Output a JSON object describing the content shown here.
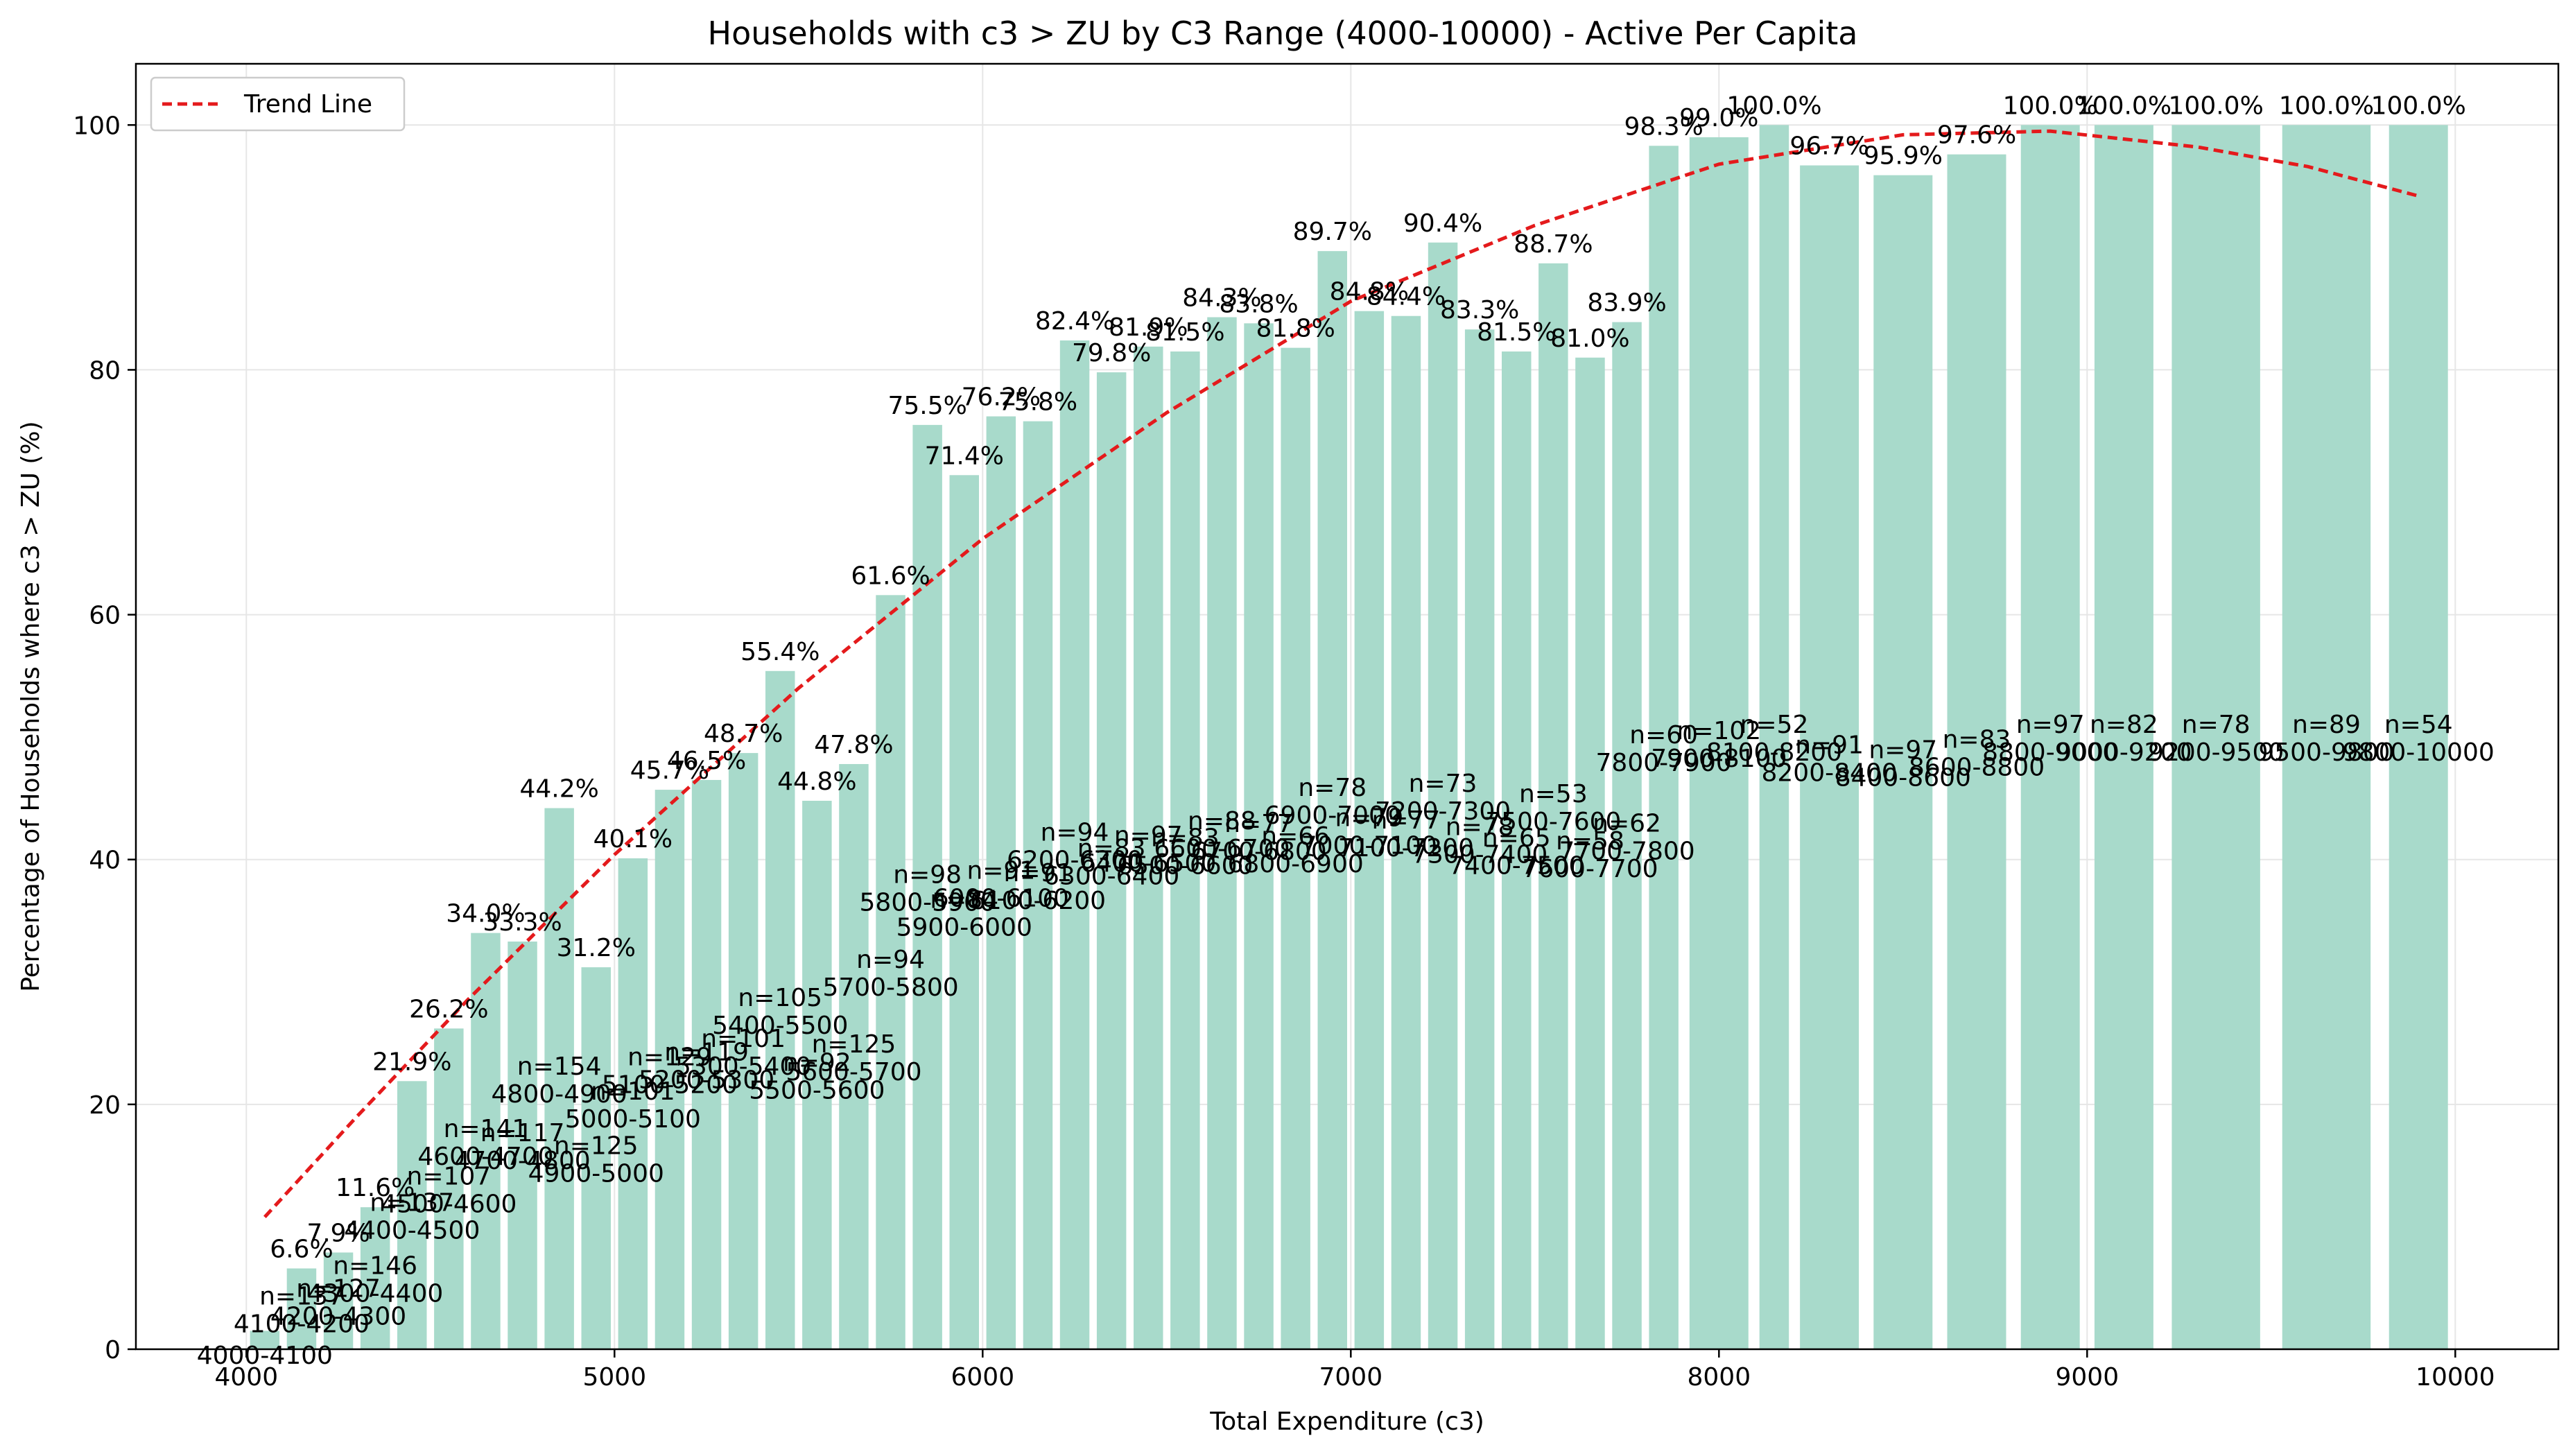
{
  "chart_data": {
    "type": "bar",
    "title": "Households with c3 > ZU by C3 Range (4000-10000) - Active Per Capita",
    "xlabel": "Total Expenditure (c3)",
    "ylabel": "Percentage of Households where c3 > ZU (%)",
    "xlim": [
      3700,
      10280
    ],
    "ylim": [
      0,
      105
    ],
    "xticks": [
      4000,
      5000,
      6000,
      7000,
      8000,
      9000,
      10000
    ],
    "yticks": [
      0,
      20,
      40,
      60,
      80,
      100
    ],
    "grid": true,
    "legend": {
      "position": "top-left",
      "entries": [
        "Trend Line"
      ]
    },
    "colors": {
      "bar": "#a8dacb",
      "trend": "#e41a1c",
      "grid": "#e6e6e6"
    },
    "bars": [
      {
        "x0": 4000,
        "x1": 4100,
        "value": 1.5,
        "pct_label": "",
        "n_label": "",
        "range_label": "4000-4100"
      },
      {
        "x0": 4100,
        "x1": 4200,
        "value": 6.6,
        "pct_label": "6.6%",
        "n_label": "n=137",
        "range_label": "4100-4200"
      },
      {
        "x0": 4200,
        "x1": 4300,
        "value": 7.9,
        "pct_label": "7.9%",
        "n_label": "n=127",
        "range_label": "4200-4300"
      },
      {
        "x0": 4300,
        "x1": 4400,
        "value": 11.6,
        "pct_label": "11.6%",
        "n_label": "n=146",
        "range_label": "4300-4400"
      },
      {
        "x0": 4400,
        "x1": 4500,
        "value": 21.9,
        "pct_label": "21.9%",
        "n_label": "n=137",
        "range_label": "4400-4500"
      },
      {
        "x0": 4500,
        "x1": 4600,
        "value": 26.2,
        "pct_label": "26.2%",
        "n_label": "n=107",
        "range_label": "4500-4600"
      },
      {
        "x0": 4600,
        "x1": 4700,
        "value": 34.0,
        "pct_label": "34.0%",
        "n_label": "n=141",
        "range_label": "4600-4700"
      },
      {
        "x0": 4700,
        "x1": 4800,
        "value": 33.3,
        "pct_label": "33.3%",
        "n_label": "n=117",
        "range_label": "4700-4800"
      },
      {
        "x0": 4800,
        "x1": 4900,
        "value": 44.2,
        "pct_label": "44.2%",
        "n_label": "n=154",
        "range_label": "4800-4900"
      },
      {
        "x0": 4900,
        "x1": 5000,
        "value": 31.2,
        "pct_label": "31.2%",
        "n_label": "n=125",
        "range_label": "4900-5000"
      },
      {
        "x0": 5000,
        "x1": 5100,
        "value": 40.1,
        "pct_label": "40.1%",
        "n_label": "n=101",
        "range_label": "5000-5100"
      },
      {
        "x0": 5100,
        "x1": 5200,
        "value": 45.7,
        "pct_label": "45.7%",
        "n_label": "n=129",
        "range_label": "5100-5200"
      },
      {
        "x0": 5200,
        "x1": 5300,
        "value": 46.5,
        "pct_label": "46.5%",
        "n_label": "n=119",
        "range_label": "5200-5300"
      },
      {
        "x0": 5300,
        "x1": 5400,
        "value": 48.7,
        "pct_label": "48.7%",
        "n_label": "n=101",
        "range_label": "5300-5400"
      },
      {
        "x0": 5400,
        "x1": 5500,
        "value": 55.4,
        "pct_label": "55.4%",
        "n_label": "n=105",
        "range_label": "5400-5500"
      },
      {
        "x0": 5500,
        "x1": 5600,
        "value": 44.8,
        "pct_label": "44.8%",
        "n_label": "n=92",
        "range_label": "5500-5600"
      },
      {
        "x0": 5600,
        "x1": 5700,
        "value": 47.8,
        "pct_label": "47.8%",
        "n_label": "n=125",
        "range_label": "5600-5700"
      },
      {
        "x0": 5700,
        "x1": 5800,
        "value": 61.6,
        "pct_label": "61.6%",
        "n_label": "n=94",
        "range_label": "5700-5800"
      },
      {
        "x0": 5800,
        "x1": 5900,
        "value": 75.5,
        "pct_label": "75.5%",
        "n_label": "n=98",
        "range_label": "5800-5900"
      },
      {
        "x0": 5900,
        "x1": 6000,
        "value": 71.4,
        "pct_label": "71.4%",
        "n_label": "n=84",
        "range_label": "5900-6000"
      },
      {
        "x0": 6000,
        "x1": 6100,
        "value": 76.2,
        "pct_label": "76.2%",
        "n_label": "n=91",
        "range_label": "6000-6100"
      },
      {
        "x0": 6100,
        "x1": 6200,
        "value": 75.8,
        "pct_label": "75.8%",
        "n_label": "n=91",
        "range_label": "6100-6200"
      },
      {
        "x0": 6200,
        "x1": 6300,
        "value": 82.4,
        "pct_label": "82.4%",
        "n_label": "n=94",
        "range_label": "6200-6300"
      },
      {
        "x0": 6300,
        "x1": 6400,
        "value": 79.8,
        "pct_label": "79.8%",
        "n_label": "n=83",
        "range_label": "6300-6400"
      },
      {
        "x0": 6400,
        "x1": 6500,
        "value": 81.9,
        "pct_label": "81.9%",
        "n_label": "n=97",
        "range_label": "6400-6500"
      },
      {
        "x0": 6500,
        "x1": 6600,
        "value": 81.5,
        "pct_label": "81.5%",
        "n_label": "n=83",
        "range_label": "6500-6600"
      },
      {
        "x0": 6600,
        "x1": 6700,
        "value": 84.3,
        "pct_label": "84.3%",
        "n_label": "n=88",
        "range_label": "6600-6700"
      },
      {
        "x0": 6700,
        "x1": 6800,
        "value": 83.8,
        "pct_label": "83.8%",
        "n_label": "n=77",
        "range_label": "6700-6800"
      },
      {
        "x0": 6800,
        "x1": 6900,
        "value": 81.8,
        "pct_label": "81.8%",
        "n_label": "n=66",
        "range_label": "6800-6900"
      },
      {
        "x0": 6900,
        "x1": 7000,
        "value": 89.7,
        "pct_label": "89.7%",
        "n_label": "n=78",
        "range_label": "6900-7000"
      },
      {
        "x0": 7000,
        "x1": 7100,
        "value": 84.8,
        "pct_label": "84.8%",
        "n_label": "n=79",
        "range_label": "7000-7100"
      },
      {
        "x0": 7100,
        "x1": 7200,
        "value": 84.4,
        "pct_label": "84.4%",
        "n_label": "n=77",
        "range_label": "7100-7200"
      },
      {
        "x0": 7200,
        "x1": 7300,
        "value": 90.4,
        "pct_label": "90.4%",
        "n_label": "n=73",
        "range_label": "7200-7300"
      },
      {
        "x0": 7300,
        "x1": 7400,
        "value": 83.3,
        "pct_label": "83.3%",
        "n_label": "n=78",
        "range_label": "7300-7400"
      },
      {
        "x0": 7400,
        "x1": 7500,
        "value": 81.5,
        "pct_label": "81.5%",
        "n_label": "n=65",
        "range_label": "7400-7500"
      },
      {
        "x0": 7500,
        "x1": 7600,
        "value": 88.7,
        "pct_label": "88.7%",
        "n_label": "n=53",
        "range_label": "7500-7600"
      },
      {
        "x0": 7600,
        "x1": 7700,
        "value": 81.0,
        "pct_label": "81.0%",
        "n_label": "n=58",
        "range_label": "7600-7700"
      },
      {
        "x0": 7700,
        "x1": 7800,
        "value": 83.9,
        "pct_label": "83.9%",
        "n_label": "n=62",
        "range_label": "7700-7800"
      },
      {
        "x0": 7800,
        "x1": 7900,
        "value": 98.3,
        "pct_label": "98.3%",
        "n_label": "n=60",
        "range_label": "7800-7900"
      },
      {
        "x0": 7900,
        "x1": 8100,
        "value": 99.0,
        "pct_label": "99.0%",
        "n_label": "n=102",
        "range_label": "7900-8100"
      },
      {
        "x0": 8100,
        "x1": 8200,
        "value": 100.0,
        "pct_label": "100.0%",
        "n_label": "n=52",
        "range_label": "8100-8200"
      },
      {
        "x0": 8200,
        "x1": 8400,
        "value": 96.7,
        "pct_label": "96.7%",
        "n_label": "n=91",
        "range_label": "8200-8400"
      },
      {
        "x0": 8400,
        "x1": 8600,
        "value": 95.9,
        "pct_label": "95.9%",
        "n_label": "n=97",
        "range_label": "8400-8600"
      },
      {
        "x0": 8600,
        "x1": 8800,
        "value": 97.6,
        "pct_label": "97.6%",
        "n_label": "n=83",
        "range_label": "8600-8800"
      },
      {
        "x0": 8800,
        "x1": 9000,
        "value": 100.0,
        "pct_label": "100.0%",
        "n_label": "n=97",
        "range_label": "8800-9000"
      },
      {
        "x0": 9000,
        "x1": 9200,
        "value": 100.0,
        "pct_label": "100.0%",
        "n_label": "n=82",
        "range_label": "9000-9200"
      },
      {
        "x0": 9200,
        "x1": 9500,
        "value": 100.0,
        "pct_label": "100.0%",
        "n_label": "n=78",
        "range_label": "9200-9500"
      },
      {
        "x0": 9500,
        "x1": 9800,
        "value": 100.0,
        "pct_label": "100.0%",
        "n_label": "n=89",
        "range_label": "9500-9800"
      },
      {
        "x0": 9800,
        "x1": 10000,
        "value": 100.0,
        "pct_label": "100.0%",
        "n_label": "n=54",
        "range_label": "9800-10000"
      }
    ],
    "trend_line": {
      "label": "Trend Line",
      "x": [
        4050,
        4300,
        4600,
        5000,
        5500,
        6000,
        6500,
        7000,
        7500,
        8000,
        8500,
        8900,
        9300,
        9600,
        9900
      ],
      "y": [
        10.8,
        19.0,
        28.5,
        40.4,
        54.0,
        66.2,
        76.5,
        85.6,
        91.8,
        96.8,
        99.2,
        99.5,
        98.2,
        96.6,
        94.2
      ]
    }
  }
}
